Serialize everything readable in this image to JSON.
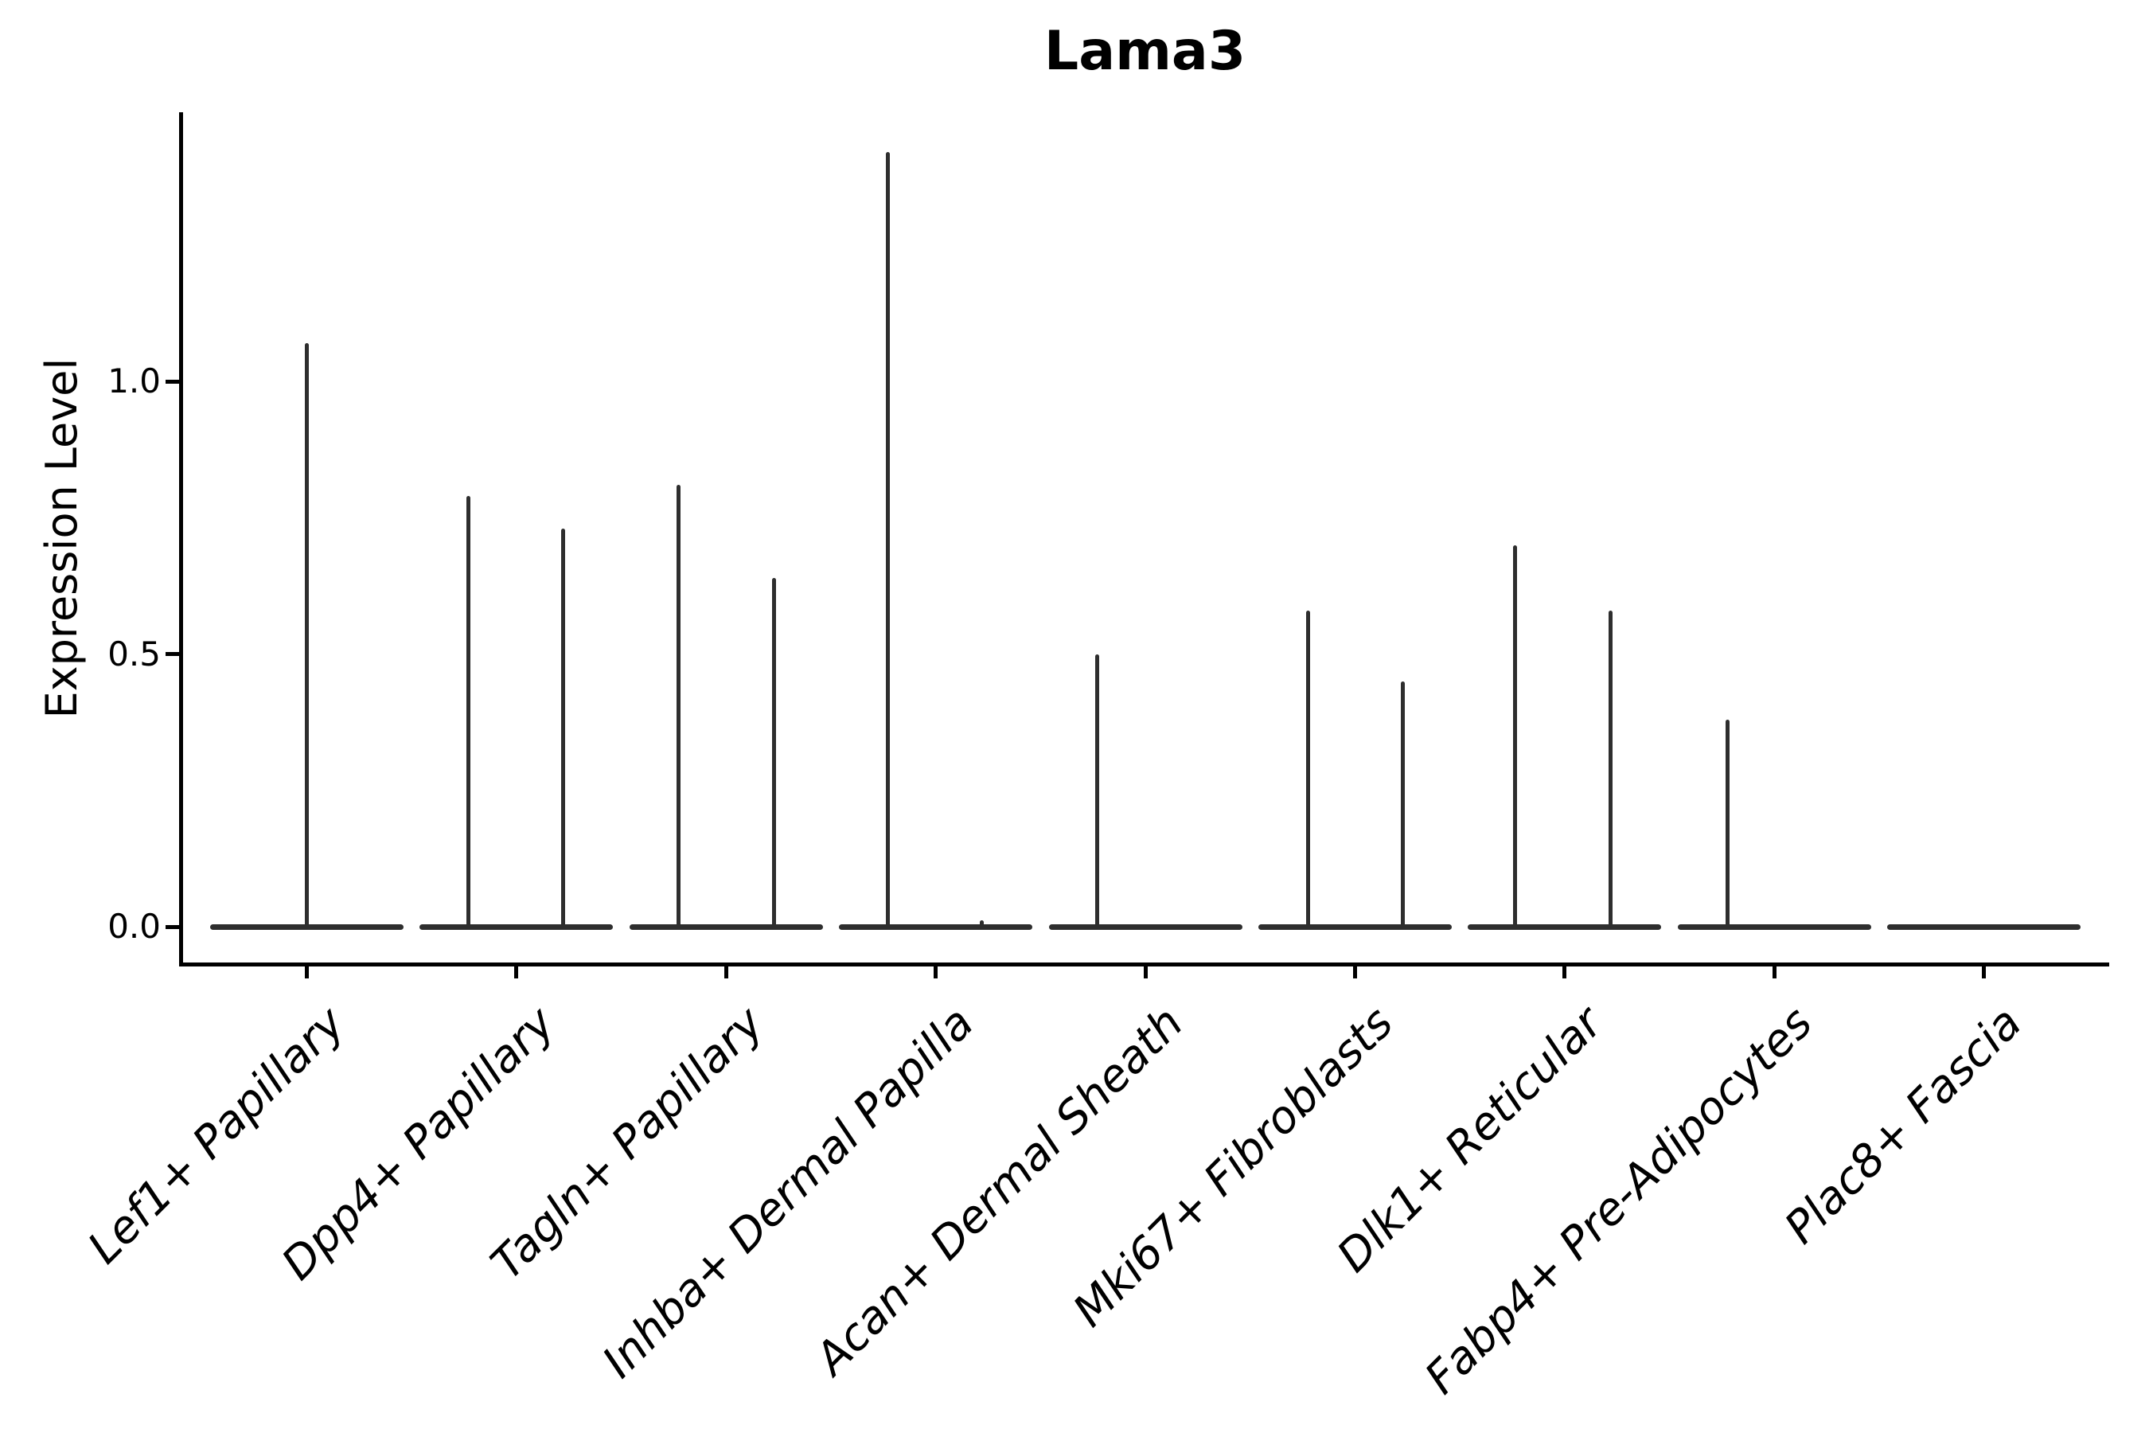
{
  "title": "Lama3",
  "chart_data": {
    "type": "violin",
    "title": "Lama3",
    "xlabel": "",
    "ylabel": "Expression Level",
    "ylim": [
      -0.07,
      1.49
    ],
    "grid": false,
    "legend": null,
    "violin_color": "#2e2e2e",
    "axis_color": "#000000",
    "yticks": [
      {
        "value": 0.0,
        "label": "0.0"
      },
      {
        "value": 0.5,
        "label": "0.5"
      },
      {
        "value": 1.0,
        "label": "1.0"
      }
    ],
    "categories": [
      "Lef1+ Papillary",
      "Dpp4+ Papillary",
      "Tagln+ Papillary",
      "Inhba+ Dermal Papilla",
      "Acan+ Dermal Sheath",
      "Mki67+ Fibroblasts",
      "Dlk1+ Reticular",
      "Fabp4+ Pre-Adipocytes",
      "Plac8+ Fascia"
    ],
    "violins": [
      {
        "category": "Lef1+ Papillary",
        "baseline": 0.0,
        "spikes": [
          {
            "offset_frac": 0.0,
            "peak": 1.07
          }
        ]
      },
      {
        "category": "Dpp4+ Papillary",
        "baseline": 0.0,
        "spikes": [
          {
            "offset_frac": -0.228,
            "peak": 0.79
          },
          {
            "offset_frac": 0.222,
            "peak": 0.73
          }
        ]
      },
      {
        "category": "Tagln+ Papillary",
        "baseline": 0.0,
        "spikes": [
          {
            "offset_frac": -0.228,
            "peak": 0.81
          },
          {
            "offset_frac": 0.228,
            "peak": 0.64
          }
        ]
      },
      {
        "category": "Inhba+ Dermal Papilla",
        "baseline": 0.0,
        "spikes": [
          {
            "offset_frac": -0.228,
            "peak": 1.42
          },
          {
            "offset_frac": 0.218,
            "peak": 0.012
          }
        ]
      },
      {
        "category": "Acan+ Dermal Sheath",
        "baseline": 0.0,
        "spikes": [
          {
            "offset_frac": -0.228,
            "peak": 0.5
          }
        ]
      },
      {
        "category": "Mki67+ Fibroblasts",
        "baseline": 0.0,
        "spikes": [
          {
            "offset_frac": -0.224,
            "peak": 0.58
          },
          {
            "offset_frac": 0.228,
            "peak": 0.45
          }
        ]
      },
      {
        "category": "Dlk1+ Reticular",
        "baseline": 0.0,
        "spikes": [
          {
            "offset_frac": -0.235,
            "peak": 0.7
          },
          {
            "offset_frac": 0.22,
            "peak": 0.58
          }
        ]
      },
      {
        "category": "Fabp4+ Pre-Adipocytes",
        "baseline": 0.0,
        "spikes": [
          {
            "offset_frac": -0.224,
            "peak": 0.38
          }
        ]
      },
      {
        "category": "Plac8+ Fascia",
        "baseline": 0.0,
        "spikes": []
      }
    ]
  }
}
